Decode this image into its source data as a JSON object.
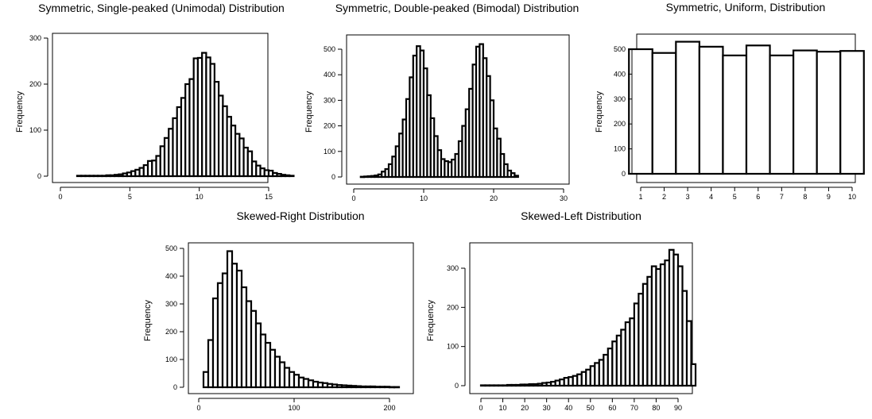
{
  "charts": [
    {
      "type": "bar",
      "title": "Symmetric, Single-peaked (Unimodal) Distribution",
      "ylabel": "Frequency",
      "xlabel": "",
      "bin_width": 0.3,
      "x_start": 1.2,
      "values": [
        1,
        1,
        1,
        1,
        1,
        1,
        1,
        2,
        2,
        3,
        4,
        6,
        8,
        11,
        14,
        18,
        24,
        33,
        34,
        44,
        65,
        83,
        103,
        126,
        150,
        170,
        200,
        211,
        256,
        257,
        268,
        258,
        244,
        205,
        175,
        152,
        129,
        110,
        92,
        82,
        62,
        54,
        32,
        23,
        17,
        13,
        12,
        7,
        5,
        3,
        2,
        1
      ],
      "xlim": [
        0,
        17
      ],
      "ylim": [
        0,
        300
      ],
      "xticks": [
        0,
        5,
        10,
        15
      ],
      "yticks": [
        0,
        100,
        200,
        300
      ],
      "grid": false,
      "legend": "none"
    },
    {
      "type": "bar",
      "title": "Symmetric, Double-peaked (Bimodal) Distribution",
      "ylabel": "Frequency",
      "xlabel": "",
      "bin_width": 0.5,
      "x_start": 1,
      "values": [
        1,
        2,
        3,
        4,
        6,
        10,
        21,
        31,
        50,
        80,
        120,
        170,
        225,
        305,
        390,
        475,
        512,
        495,
        425,
        320,
        230,
        160,
        105,
        70,
        62,
        58,
        68,
        90,
        140,
        200,
        265,
        345,
        440,
        510,
        520,
        465,
        395,
        300,
        190,
        150,
        90,
        50,
        25,
        15,
        5
      ],
      "xlim": [
        0,
        30
      ],
      "ylim": [
        0,
        500
      ],
      "xticks": [
        0,
        10,
        20,
        30
      ],
      "yticks": [
        0,
        100,
        200,
        300,
        400,
        500
      ],
      "grid": false,
      "legend": "none"
    },
    {
      "type": "bar",
      "title": "Symmetric, Uniform, Distribution",
      "ylabel": "Frequency",
      "xlabel": "",
      "bin_width": 1,
      "x_start": 0.5,
      "values": [
        500,
        485,
        530,
        510,
        475,
        515,
        475,
        495,
        490,
        493
      ],
      "xlim": [
        0.5,
        10.5
      ],
      "ylim": [
        0,
        500
      ],
      "xticks": [
        1,
        2,
        3,
        4,
        5,
        6,
        7,
        8,
        9,
        10
      ],
      "yticks": [
        0,
        100,
        200,
        300,
        400,
        500
      ],
      "grid": false,
      "legend": "none"
    },
    {
      "type": "bar",
      "title": "Skewed-Right Distribution",
      "ylabel": "Frequency",
      "xlabel": "",
      "bin_width": 5,
      "x_start": 5,
      "values": [
        55,
        170,
        320,
        375,
        410,
        490,
        445,
        420,
        360,
        310,
        275,
        230,
        190,
        160,
        135,
        110,
        90,
        70,
        55,
        45,
        35,
        30,
        25,
        20,
        17,
        15,
        12,
        10,
        8,
        7,
        6,
        5,
        4,
        3,
        3,
        3,
        2,
        2,
        2,
        1,
        1
      ],
      "xlim": [
        0,
        210
      ],
      "ylim": [
        0,
        500
      ],
      "xticks": [
        0,
        100,
        200
      ],
      "yticks": [
        0,
        100,
        200,
        300,
        400,
        500
      ],
      "grid": false,
      "legend": "none"
    },
    {
      "type": "bar",
      "title": "Skewed-Left Distribution",
      "ylabel": "Frequency",
      "xlabel": "",
      "bin_width": 2,
      "x_start": 0,
      "values": [
        1,
        1,
        1,
        1,
        1,
        1,
        2,
        2,
        2,
        3,
        3,
        4,
        4,
        5,
        7,
        8,
        10,
        13,
        16,
        20,
        22,
        25,
        29,
        35,
        41,
        50,
        58,
        66,
        79,
        95,
        113,
        128,
        143,
        162,
        172,
        210,
        235,
        260,
        278,
        305,
        298,
        310,
        320,
        347,
        335,
        305,
        242,
        165,
        55
      ],
      "xlim": [
        -2,
        92
      ],
      "ylim": [
        0,
        350
      ],
      "xticks": [
        0,
        10,
        20,
        30,
        40,
        50,
        60,
        70,
        80,
        90
      ],
      "yticks": [
        0,
        100,
        200,
        300
      ],
      "grid": false,
      "legend": "none"
    }
  ]
}
